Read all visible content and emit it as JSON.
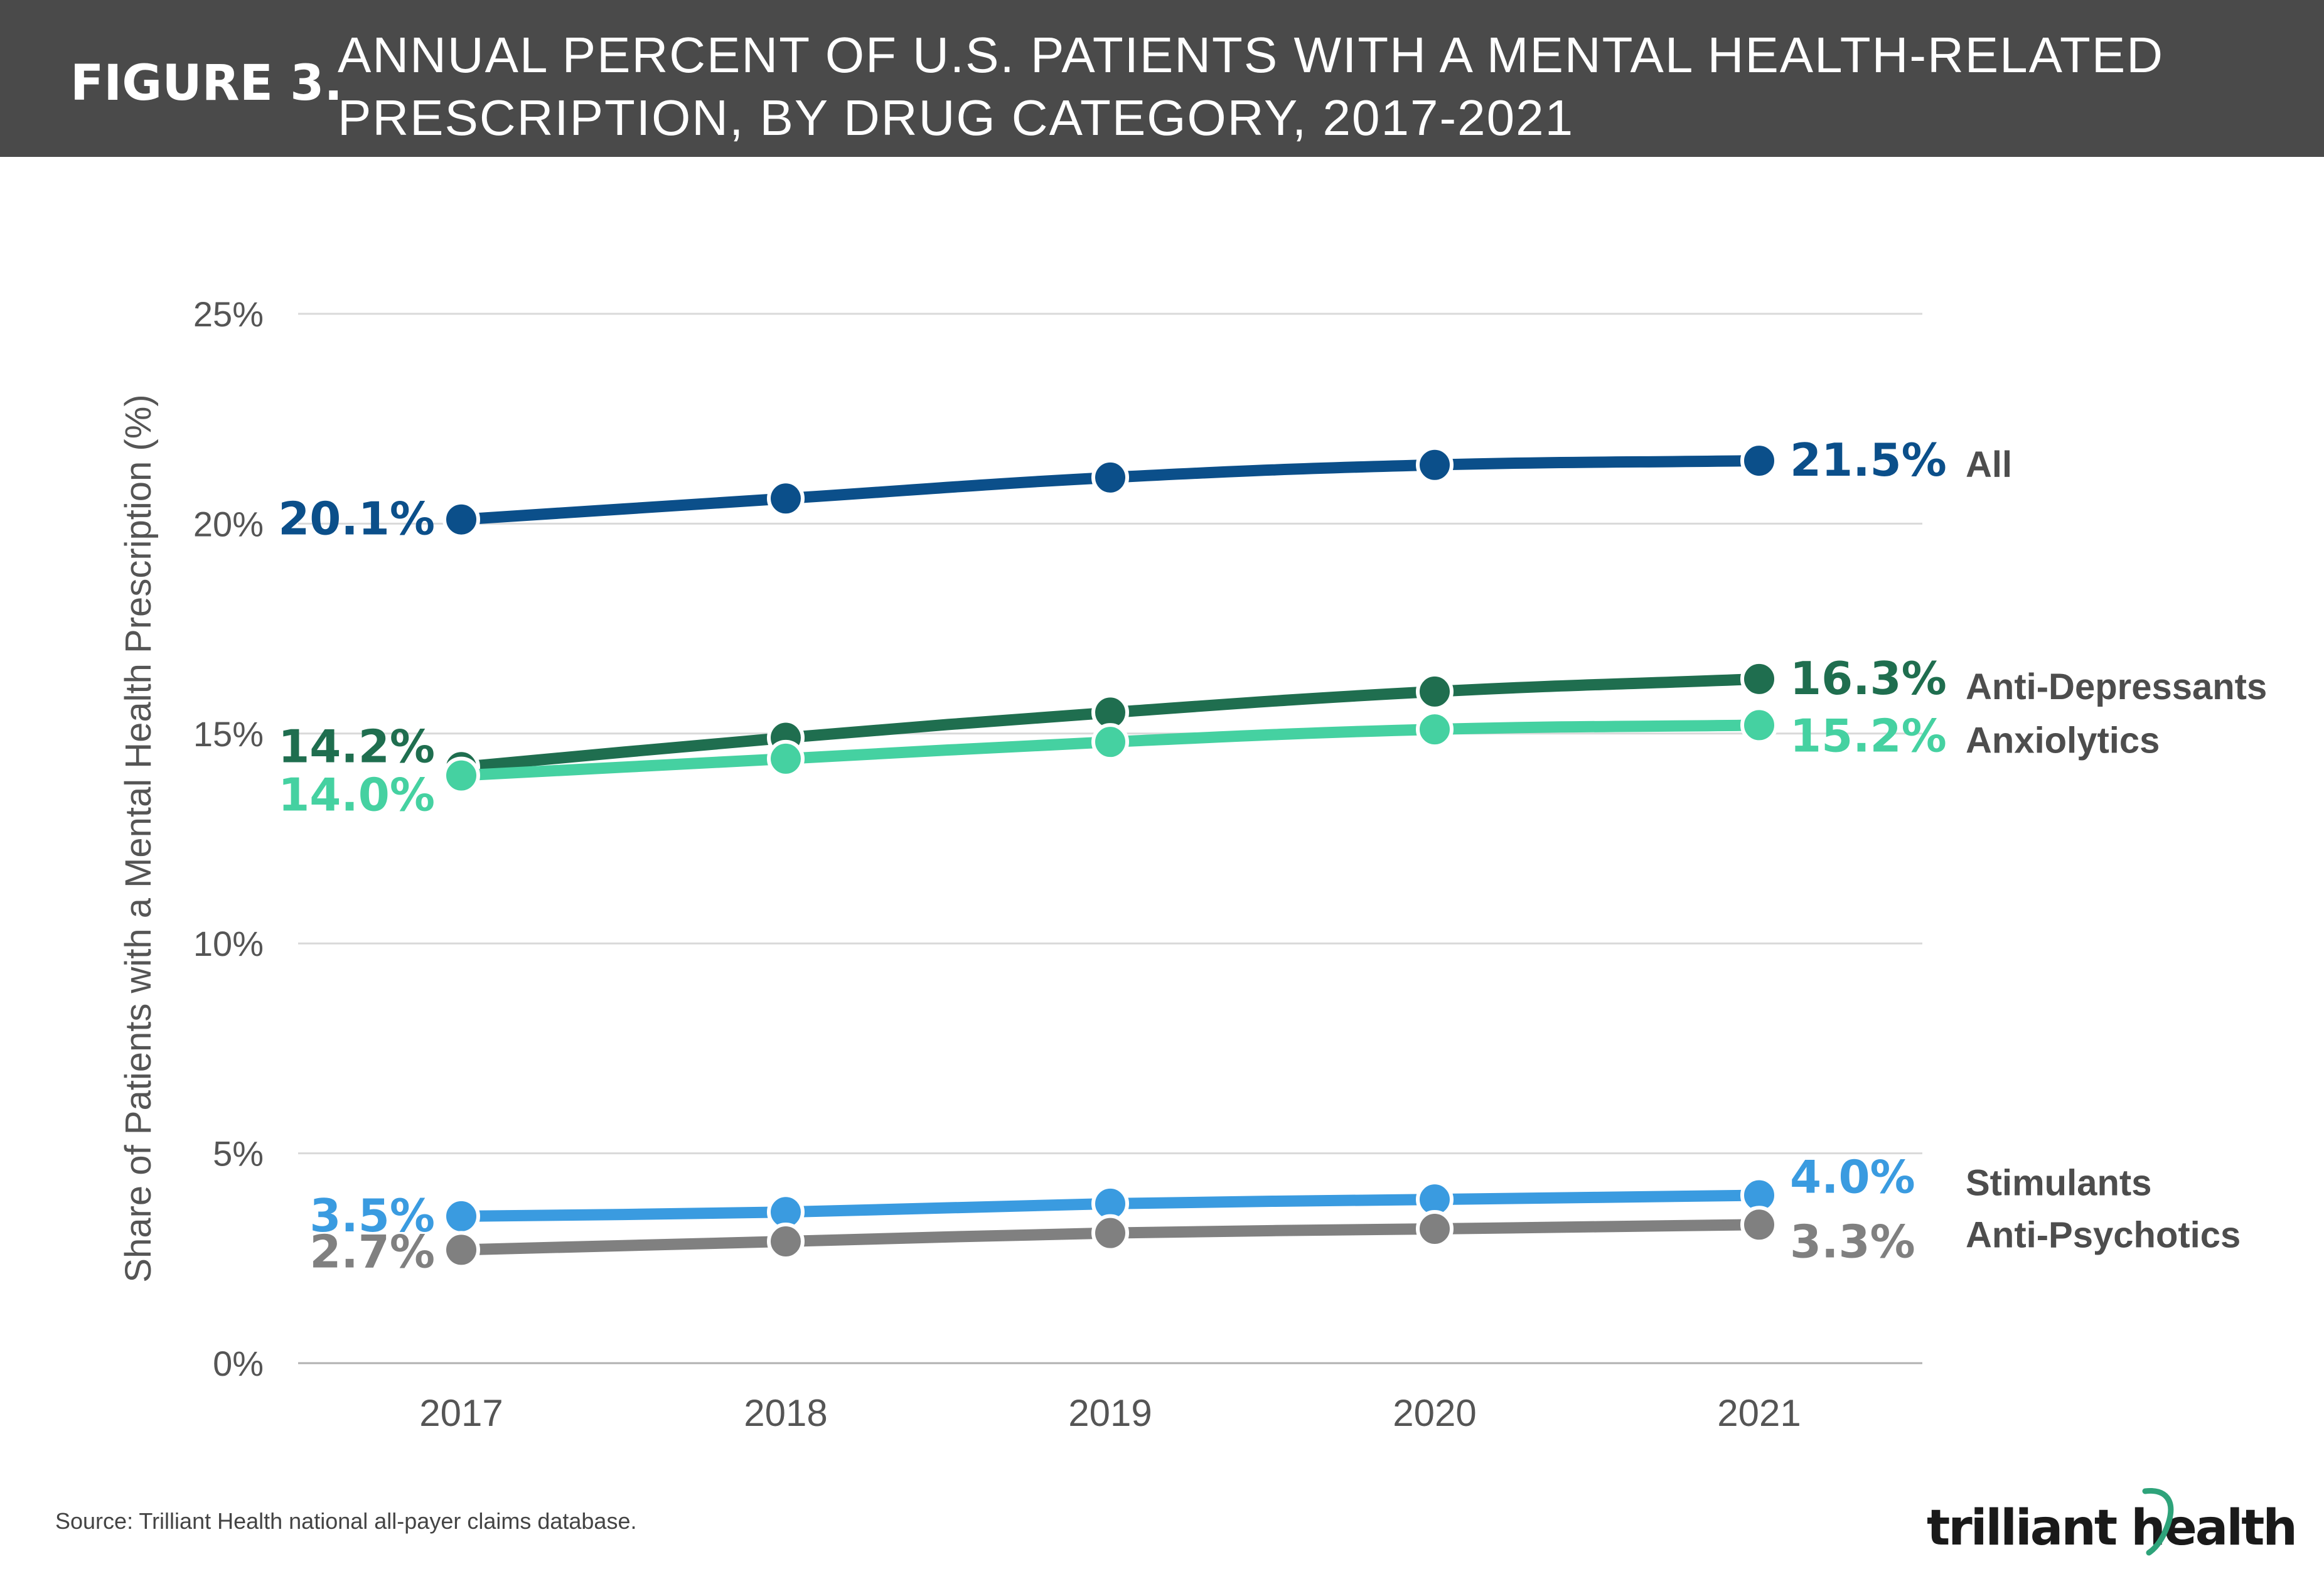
{
  "header": {
    "figure_label": "FIGURE 3.",
    "title_line1": "ANNUAL PERCENT OF U.S. PATIENTS WITH A MENTAL HEALTH-RELATED",
    "title_line2": "PRESCRIPTION, BY DRUG CATEGORY, 2017-2021"
  },
  "footer": {
    "source": "Source: Trilliant Health national all-payer claims database.",
    "logo_text": "trilliant health"
  },
  "colors": {
    "header_bg": "#4a4a4a",
    "all": "#0b4f8a",
    "anti_depressants": "#1f6e4f",
    "anxiolytics": "#45d1a1",
    "stimulants": "#3a9be0",
    "anti_psychotics": "#808080",
    "category_label": "#4d4d4d",
    "logo_accent": "#2ea37a"
  },
  "chart_data": {
    "type": "line",
    "x": [
      "2017",
      "2018",
      "2019",
      "2020",
      "2021"
    ],
    "ylabel": "Share of Patients with a Mental Health Prescription (%)",
    "xlabel": "",
    "ylim": [
      0,
      25
    ],
    "yticks": [
      0,
      5,
      10,
      15,
      20,
      25
    ],
    "ytick_labels": [
      "0%",
      "5%",
      "10%",
      "15%",
      "20%",
      "25%"
    ],
    "grid": true,
    "series": [
      {
        "name": "All",
        "color_key": "all",
        "values": [
          20.1,
          20.6,
          21.1,
          21.4,
          21.5
        ],
        "start_label": "20.1%",
        "end_label": "21.5%"
      },
      {
        "name": "Anti-Depressants",
        "color_key": "anti_depressants",
        "values": [
          14.2,
          14.9,
          15.5,
          16.0,
          16.3
        ],
        "start_label": "14.2%",
        "end_label": "16.3%"
      },
      {
        "name": "Anxiolytics",
        "color_key": "anxiolytics",
        "values": [
          14.0,
          14.4,
          14.8,
          15.1,
          15.2
        ],
        "start_label": "14.0%",
        "end_label": "15.2%"
      },
      {
        "name": "Stimulants",
        "color_key": "stimulants",
        "values": [
          3.5,
          3.6,
          3.8,
          3.9,
          4.0
        ],
        "start_label": "3.5%",
        "end_label": "4.0%"
      },
      {
        "name": "Anti-Psychotics",
        "color_key": "anti_psychotics",
        "values": [
          2.7,
          2.9,
          3.1,
          3.2,
          3.3
        ],
        "start_label": "2.7%",
        "end_label": "3.3%"
      }
    ]
  }
}
